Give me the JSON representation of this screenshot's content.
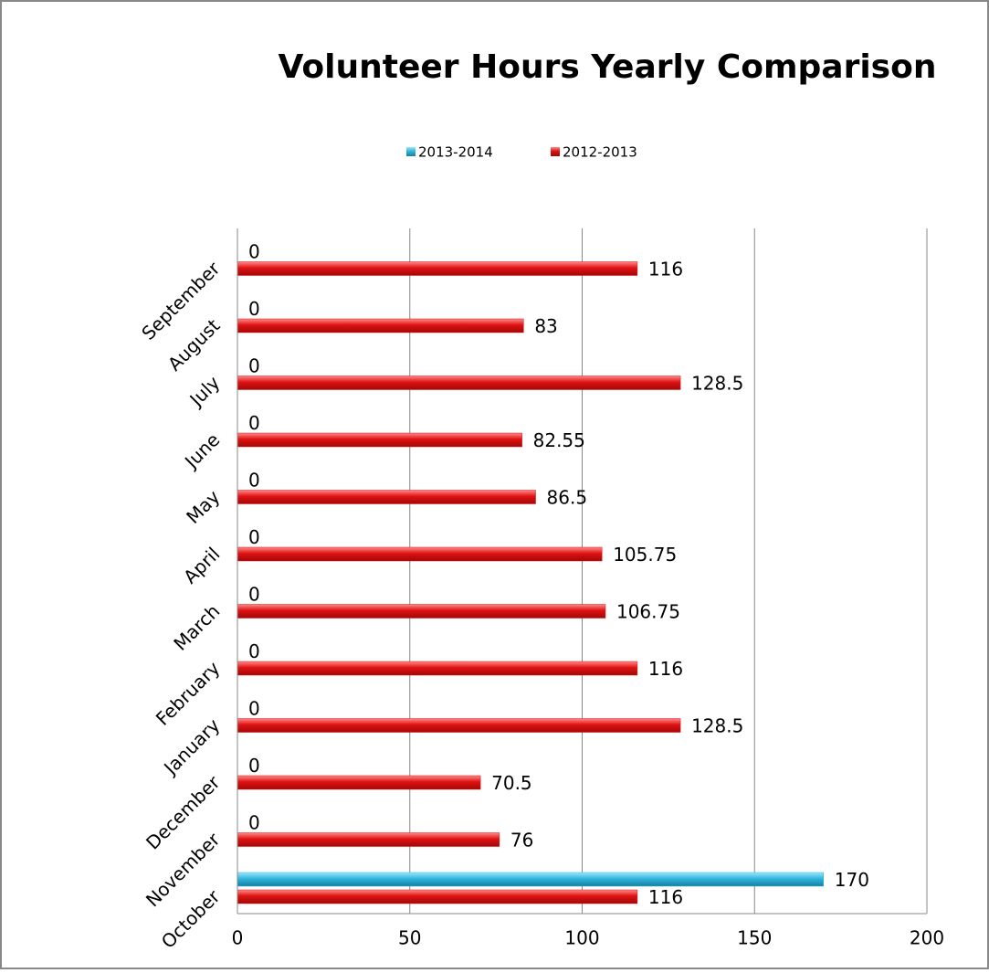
{
  "chart_data": {
    "type": "bar",
    "orientation": "horizontal",
    "title": "Volunteer Hours Yearly Comparison",
    "categories": [
      "October",
      "November",
      "December",
      "January",
      "February",
      "March",
      "April",
      "May",
      "June",
      "July",
      "August",
      "September"
    ],
    "series": [
      {
        "name": "2013-2014",
        "color": "#2fb6de",
        "values": [
          170,
          0,
          0,
          0,
          0,
          0,
          0,
          0,
          0,
          0,
          0,
          0
        ]
      },
      {
        "name": "2012-2013",
        "color": "#e01212",
        "values": [
          116,
          76,
          70.5,
          128.5,
          116,
          106.75,
          105.75,
          86.5,
          82.55,
          128.5,
          83,
          116
        ]
      }
    ],
    "xlim": [
      0,
      200
    ],
    "xticks": [
      0,
      50,
      100,
      150,
      200
    ],
    "grid": true,
    "legend": "top"
  }
}
